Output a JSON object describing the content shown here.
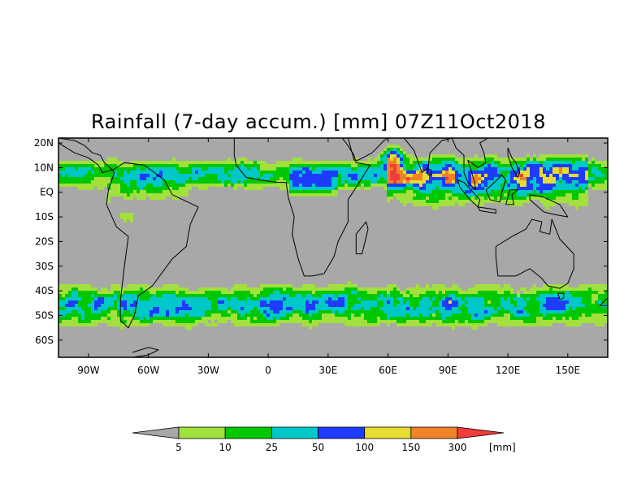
{
  "title": "Rainfall (7-day accum.) [mm] 07Z11Oct2018",
  "map": {
    "lon_range": [
      -105,
      170
    ],
    "lat_range": [
      -67,
      22
    ],
    "lat_ticks": [
      {
        "value": 20,
        "label": "20N"
      },
      {
        "value": 10,
        "label": "10N"
      },
      {
        "value": 0,
        "label": "EQ"
      },
      {
        "value": -10,
        "label": "10S"
      },
      {
        "value": -20,
        "label": "20S"
      },
      {
        "value": -30,
        "label": "30S"
      },
      {
        "value": -40,
        "label": "40S"
      },
      {
        "value": -50,
        "label": "50S"
      },
      {
        "value": -60,
        "label": "60S"
      }
    ],
    "lon_ticks": [
      {
        "value": -90,
        "label": "90W"
      },
      {
        "value": -60,
        "label": "60W"
      },
      {
        "value": -30,
        "label": "30W"
      },
      {
        "value": 0,
        "label": "0"
      },
      {
        "value": 30,
        "label": "30E"
      },
      {
        "value": 60,
        "label": "60E"
      },
      {
        "value": 90,
        "label": "90E"
      },
      {
        "value": 120,
        "label": "120E"
      },
      {
        "value": 150,
        "label": "150E"
      }
    ],
    "background_color": "#a8a8a8",
    "coastline_color": "#000000"
  },
  "colorbar": {
    "levels": [
      "5",
      "10",
      "25",
      "50",
      "100",
      "150",
      "300"
    ],
    "unit": "[mm]",
    "colors": [
      "#a8a8a8",
      "#a2e03c",
      "#00c800",
      "#00c8c8",
      "#1e3cff",
      "#e6dc32",
      "#f08228",
      "#f03c3c"
    ]
  }
}
